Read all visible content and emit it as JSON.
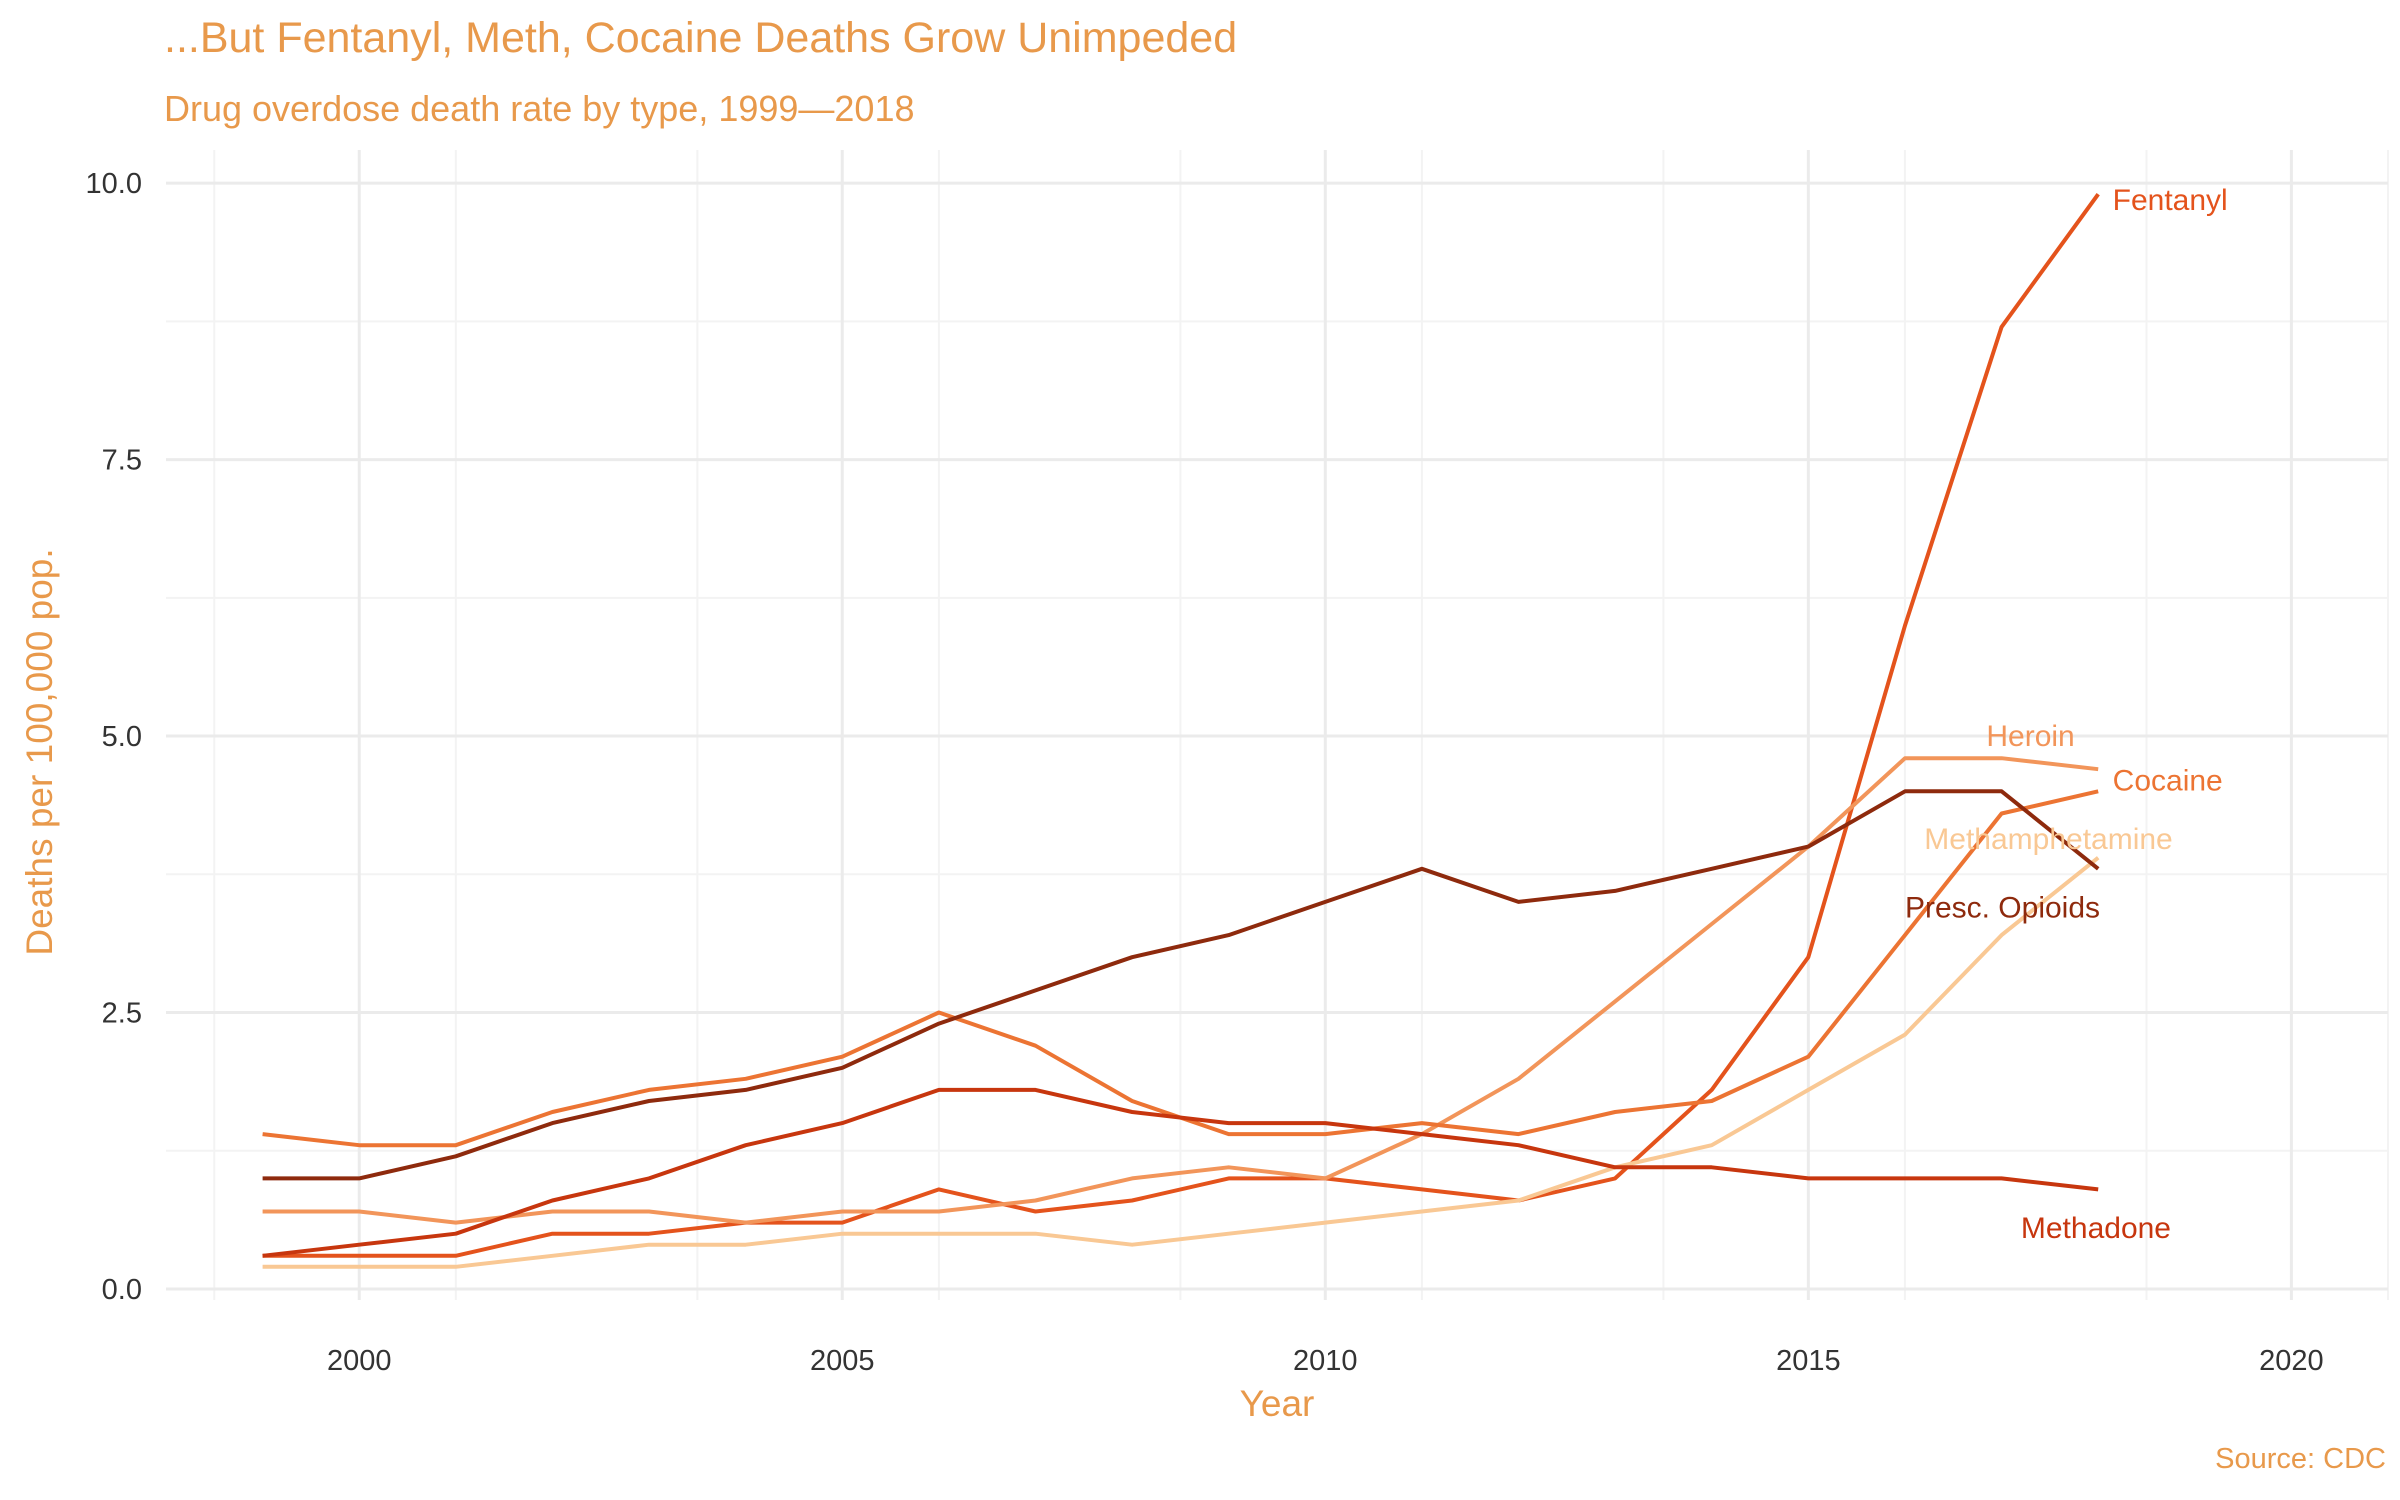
{
  "chart_data": {
    "type": "line",
    "title": "...But Fentanyl, Meth, Cocaine Deaths Grow Unimpeded",
    "subtitle": "Drug overdose death rate by type, 1999—2018",
    "caption": "Source: CDC",
    "xlabel": "Year",
    "ylabel": "Deaths per 100,000 pop.",
    "xlim": [
      1998,
      2021
    ],
    "ylim": [
      -0.1,
      10.3
    ],
    "xticks": [
      2000,
      2005,
      2010,
      2015,
      2020
    ],
    "yticks": [
      0,
      2.5,
      5,
      7.5,
      10
    ],
    "ytick_labels": [
      "0.0",
      "2.5",
      "5.0",
      "7.5",
      "10.0"
    ],
    "grid": true,
    "legend": "direct-labels",
    "x": [
      1999,
      2000,
      2001,
      2002,
      2003,
      2004,
      2005,
      2006,
      2007,
      2008,
      2009,
      2010,
      2011,
      2012,
      2013,
      2014,
      2015,
      2016,
      2017,
      2018
    ],
    "series": [
      {
        "name": "Fentanyl",
        "color": "#E4531C",
        "label_year": 2018.15,
        "label_value": 9.85,
        "label_anchor": "start",
        "values": [
          0.3,
          0.3,
          0.3,
          0.5,
          0.5,
          0.6,
          0.6,
          0.9,
          0.7,
          0.8,
          1.0,
          1.0,
          0.9,
          0.8,
          1.0,
          1.8,
          3.0,
          6.0,
          8.7,
          9.9
        ]
      },
      {
        "name": "Heroin",
        "color": "#F2955A",
        "label_year": 2017.3,
        "label_value": 5.0,
        "label_anchor": "middle",
        "values": [
          0.7,
          0.7,
          0.6,
          0.7,
          0.7,
          0.6,
          0.7,
          0.7,
          0.8,
          1.0,
          1.1,
          1.0,
          1.4,
          1.9,
          2.6,
          3.3,
          4.0,
          4.8,
          4.8,
          4.7
        ]
      },
      {
        "name": "Cocaine",
        "color": "#EC7433",
        "label_year": 2018.15,
        "label_value": 4.6,
        "label_anchor": "start",
        "values": [
          1.4,
          1.3,
          1.3,
          1.6,
          1.8,
          1.9,
          2.1,
          2.5,
          2.2,
          1.7,
          1.4,
          1.4,
          1.5,
          1.4,
          1.6,
          1.7,
          2.1,
          3.2,
          4.3,
          4.5
        ]
      },
      {
        "name": "Methamphetamine",
        "color": "#F9C894",
        "label_year": 2016.2,
        "label_value": 4.07,
        "label_anchor": "start",
        "values": [
          0.2,
          0.2,
          0.2,
          0.3,
          0.4,
          0.4,
          0.5,
          0.5,
          0.5,
          0.4,
          0.5,
          0.6,
          0.7,
          0.8,
          1.1,
          1.3,
          1.8,
          2.3,
          3.2,
          3.9
        ]
      },
      {
        "name": "Presc. Opioids",
        "color": "#8E2A0D",
        "label_year": 2016.0,
        "label_value": 3.45,
        "label_anchor": "start",
        "values": [
          1.0,
          1.0,
          1.2,
          1.5,
          1.7,
          1.8,
          2.0,
          2.4,
          2.7,
          3.0,
          3.2,
          3.5,
          3.8,
          3.5,
          3.6,
          3.8,
          4.0,
          4.5,
          4.5,
          3.8
        ]
      },
      {
        "name": "Methadone",
        "color": "#C7360E",
        "label_year": 2017.2,
        "label_value": 0.55,
        "label_anchor": "start",
        "values": [
          0.3,
          0.4,
          0.5,
          0.8,
          1.0,
          1.3,
          1.5,
          1.8,
          1.8,
          1.6,
          1.5,
          1.5,
          1.4,
          1.3,
          1.1,
          1.1,
          1.0,
          1.0,
          1.0,
          0.9
        ]
      }
    ]
  }
}
